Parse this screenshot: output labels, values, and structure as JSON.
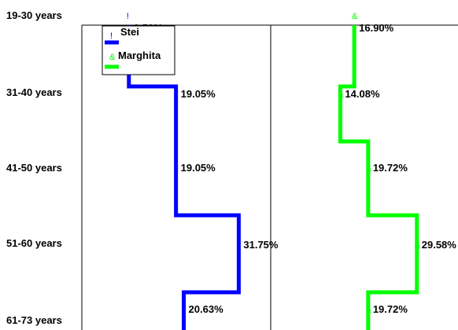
{
  "colors": {
    "stei": "#0000ff",
    "marghita": "#00ff00",
    "axis": "#000000"
  },
  "chart_data": {
    "type": "line",
    "orientation": "vertical-step",
    "categories": [
      "19-30 years",
      "31-40 years",
      "41-50 years",
      "51-60 years",
      "61-73 years"
    ],
    "series": [
      {
        "name": "Stei",
        "marker": "!",
        "color": "#0000ff",
        "values": [
          9.52,
          19.05,
          19.05,
          31.75,
          20.63
        ],
        "labels": [
          "9.52%",
          "19.05%",
          "19.05%",
          "31.75%",
          "20.63%"
        ]
      },
      {
        "name": "Marghita",
        "marker": "&",
        "color": "#00ff00",
        "values": [
          16.9,
          14.08,
          19.72,
          29.58,
          19.72
        ],
        "labels": [
          "16.90%",
          "14.08%",
          "19.72%",
          "29.58%",
          "19.72%"
        ]
      }
    ],
    "legend": "top-left",
    "grid": false
  }
}
